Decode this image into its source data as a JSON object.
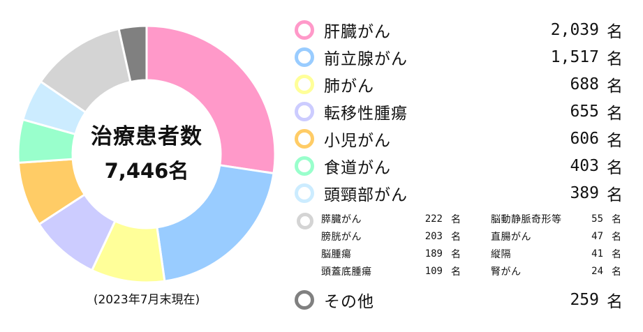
{
  "chart_data": {
    "type": "pie",
    "style": "donut",
    "center_title": "治療患者数",
    "center_total": "7,446名",
    "note": "(2023年7月末現在)",
    "unit": "名",
    "slices": [
      {
        "label": "肝臓がん",
        "value": 2039,
        "value_text": "2,039",
        "color": "#ff99c9"
      },
      {
        "label": "前立腺がん",
        "value": 1517,
        "value_text": "1,517",
        "color": "#99ccff"
      },
      {
        "label": "肺がん",
        "value": 688,
        "value_text": "688",
        "color": "#ffff99"
      },
      {
        "label": "転移性腫瘍",
        "value": 655,
        "value_text": "655",
        "color": "#ccccff"
      },
      {
        "label": "小児がん",
        "value": 606,
        "value_text": "606",
        "color": "#ffcc66"
      },
      {
        "label": "食道がん",
        "value": 403,
        "value_text": "403",
        "color": "#99ffcc"
      },
      {
        "label": "頭頸部がん",
        "value": 389,
        "value_text": "389",
        "color": "#ccecff"
      },
      {
        "label": "other_small_group",
        "value": 890,
        "color": "#d4d4d4"
      },
      {
        "label": "その他",
        "value": 259,
        "value_text": "259",
        "color": "#808080"
      }
    ],
    "small_group": [
      {
        "label": "膵臓がん",
        "value": 222
      },
      {
        "label": "膀胱がん",
        "value": 203
      },
      {
        "label": "脳腫瘍",
        "value": 189
      },
      {
        "label": "頭蓋底腫瘍",
        "value": 109
      },
      {
        "label": "脳動静脈奇形等",
        "value": 55
      },
      {
        "label": "直腸がん",
        "value": 47
      },
      {
        "label": "縦隔",
        "value": 41
      },
      {
        "label": "腎がん",
        "value": 24
      }
    ]
  }
}
